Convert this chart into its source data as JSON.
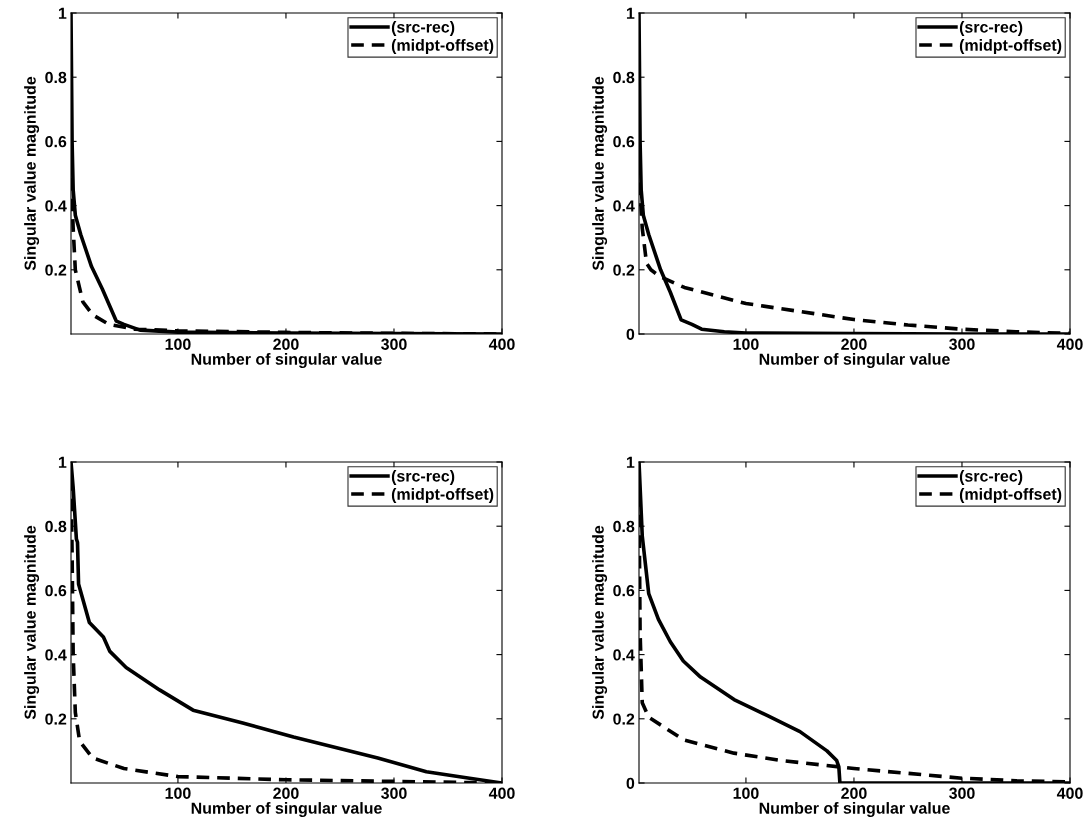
{
  "chart_data": [
    {
      "type": "line",
      "xlabel": "Number of singular value",
      "ylabel": "Singular value magnitude",
      "xlim": [
        1,
        400
      ],
      "ylim": [
        0,
        1
      ],
      "xticks": [
        100,
        200,
        300,
        400
      ],
      "yticks": [
        0.2,
        0.4,
        0.6,
        0.8,
        1
      ],
      "legend": "top right",
      "grid": false,
      "series": [
        {
          "name": "(src-rec)",
          "color": "#000000",
          "line_style": "solid",
          "x": [
            1,
            2,
            3,
            5,
            10,
            20,
            30,
            43,
            50,
            65,
            100,
            200,
            300,
            400
          ],
          "values": [
            1.0,
            0.6,
            0.45,
            0.37,
            0.31,
            0.21,
            0.14,
            0.04,
            0.03,
            0.012,
            0.006,
            0.003,
            0.001,
            0.0
          ]
        },
        {
          "name": "(midpt-offset)",
          "color": "#000000",
          "line_style": "dashed",
          "x": [
            1,
            2,
            3,
            5,
            12,
            21,
            36,
            60,
            100,
            200,
            300,
            400
          ],
          "values": [
            0.55,
            0.42,
            0.33,
            0.2,
            0.1,
            0.06,
            0.03,
            0.015,
            0.01,
            0.005,
            0.002,
            0.0
          ]
        }
      ]
    },
    {
      "type": "line",
      "xlabel": "Number of singular value",
      "ylabel": "Singular value magnitude",
      "xlim": [
        1,
        400
      ],
      "ylim": [
        0,
        1
      ],
      "xticks": [
        100,
        200,
        300,
        400
      ],
      "yticks": [
        0,
        0.2,
        0.4,
        0.6,
        0.8,
        1
      ],
      "legend": "top right",
      "grid": false,
      "series": [
        {
          "name": "(src-rec)",
          "color": "#000000",
          "line_style": "solid",
          "x": [
            1,
            2,
            3,
            5,
            10,
            21,
            30,
            40,
            50,
            59,
            80,
            100,
            200,
            300,
            400
          ],
          "values": [
            1.0,
            0.6,
            0.45,
            0.37,
            0.31,
            0.2,
            0.13,
            0.044,
            0.03,
            0.015,
            0.007,
            0.003,
            0.001,
            0.0,
            0.0
          ]
        },
        {
          "name": "(midpt-offset)",
          "color": "#000000",
          "line_style": "dashed",
          "x": [
            1,
            2,
            4,
            8,
            12,
            20,
            43,
            100,
            150,
            200,
            250,
            300,
            350,
            400
          ],
          "values": [
            0.6,
            0.45,
            0.33,
            0.22,
            0.2,
            0.18,
            0.145,
            0.095,
            0.07,
            0.045,
            0.028,
            0.015,
            0.007,
            0.002
          ]
        }
      ]
    },
    {
      "type": "line",
      "xlabel": "Number of singular value",
      "ylabel": "Singular value magnitude",
      "xlim": [
        1,
        400
      ],
      "ylim": [
        0,
        1
      ],
      "xticks": [
        100,
        200,
        300,
        400
      ],
      "yticks": [
        0.2,
        0.4,
        0.6,
        0.8,
        1
      ],
      "legend": "top right",
      "grid": false,
      "series": [
        {
          "name": "(src-rec)",
          "color": "#000000",
          "line_style": "solid",
          "x": [
            1,
            3,
            6,
            7,
            8,
            18,
            31,
            37,
            52,
            83,
            114,
            160,
            207,
            285,
            330,
            370,
            400
          ],
          "values": [
            1.0,
            0.92,
            0.76,
            0.75,
            0.62,
            0.5,
            0.455,
            0.41,
            0.36,
            0.29,
            0.227,
            0.187,
            0.143,
            0.078,
            0.035,
            0.015,
            0.0
          ]
        },
        {
          "name": "(midpt-offset)",
          "color": "#000000",
          "line_style": "dashed",
          "x": [
            1,
            2,
            3,
            5,
            9,
            21,
            50,
            100,
            200,
            300,
            400
          ],
          "values": [
            0.95,
            0.72,
            0.4,
            0.22,
            0.13,
            0.078,
            0.045,
            0.02,
            0.01,
            0.005,
            0.0
          ]
        }
      ]
    },
    {
      "type": "line",
      "xlabel": "Number of singular value",
      "ylabel": "Singular value magnitude",
      "xlim": [
        1,
        400
      ],
      "ylim": [
        0,
        1
      ],
      "xticks": [
        100,
        200,
        300,
        400
      ],
      "yticks": [
        0,
        0.2,
        0.4,
        0.6,
        0.8,
        1
      ],
      "legend": "top right",
      "grid": false,
      "series": [
        {
          "name": "(src-rec)",
          "color": "#000000",
          "line_style": "solid",
          "x": [
            1,
            4,
            7,
            10,
            19,
            30,
            42,
            58,
            89,
            120,
            150,
            175,
            184,
            186,
            187,
            250,
            400
          ],
          "values": [
            1.0,
            0.77,
            0.68,
            0.59,
            0.51,
            0.44,
            0.38,
            0.33,
            0.26,
            0.21,
            0.16,
            0.1,
            0.07,
            0.05,
            0.0,
            0.0,
            0.0
          ]
        },
        {
          "name": "(midpt-offset)",
          "color": "#000000",
          "line_style": "dashed",
          "x": [
            1,
            2,
            4,
            10,
            42,
            89,
            133,
            200,
            250,
            300,
            350,
            400
          ],
          "values": [
            0.9,
            0.47,
            0.25,
            0.205,
            0.135,
            0.093,
            0.07,
            0.045,
            0.03,
            0.015,
            0.007,
            0.003
          ]
        }
      ]
    }
  ]
}
